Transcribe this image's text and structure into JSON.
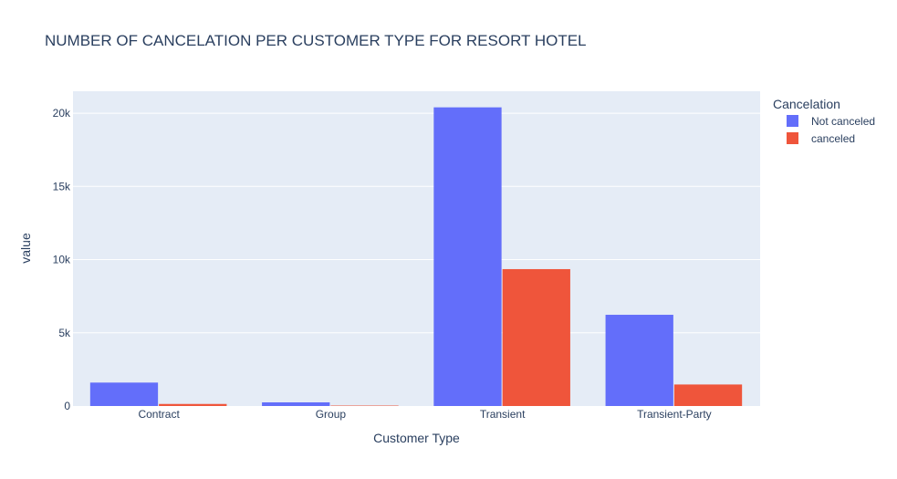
{
  "chart_data": {
    "type": "bar",
    "title": "NUMBER OF CANCELATION PER CUSTOMER TYPE FOR RESORT HOTEL",
    "xlabel": "Customer Type",
    "ylabel": "value",
    "categories": [
      "Contract",
      "Group",
      "Transient",
      "Transient-Party"
    ],
    "series": [
      {
        "name": "Not canceled",
        "color": "#636efa",
        "values": [
          1600,
          250,
          20400,
          6230
        ]
      },
      {
        "name": "canceled",
        "color": "#ef553b",
        "values": [
          140,
          30,
          9350,
          1470
        ]
      }
    ],
    "ylim": [
      0,
      21500
    ],
    "yticks": [
      0,
      5000,
      10000,
      15000,
      20000
    ],
    "ytick_labels": [
      "0",
      "5k",
      "10k",
      "15k",
      "20k"
    ],
    "legend": {
      "title": "Cancelation",
      "placement": "top-right-outside"
    },
    "grid": true,
    "plot_bgcolor": "#e5ecf6"
  }
}
